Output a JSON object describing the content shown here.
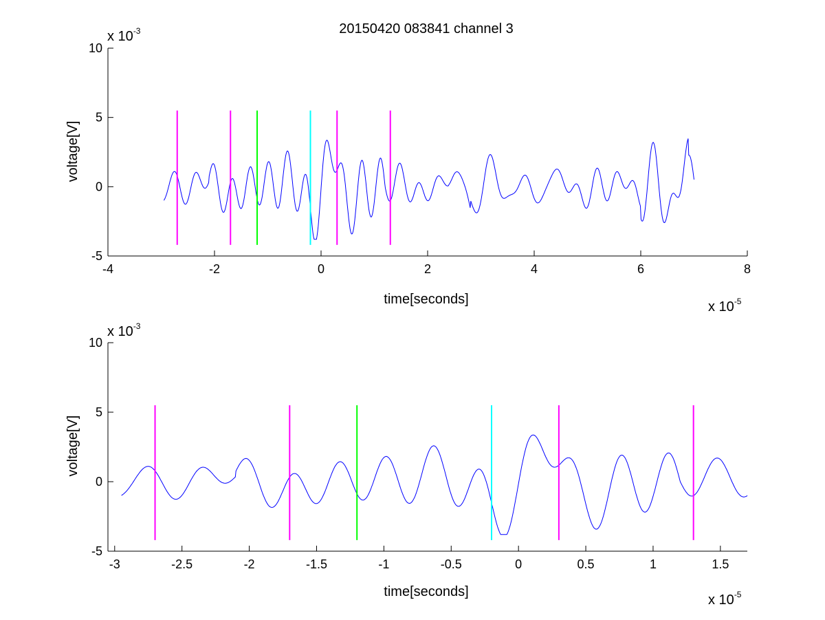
{
  "figure": {
    "title": "20150420 083841 channel 3",
    "trace_color": "#0000ff",
    "marker_colors": {
      "magenta": "#ff00ff",
      "green": "#00ff00",
      "cyan": "#00ffff"
    }
  },
  "chart_data": [
    {
      "type": "line",
      "title": "20150420 083841 channel 3",
      "xlabel": "time[seconds]",
      "ylabel": "voltage[V]",
      "xlim": [
        -4e-05,
        8e-05
      ],
      "ylim": [
        -0.005,
        0.01
      ],
      "x_ticks": [
        -4e-05,
        -2e-05,
        0,
        2e-05,
        4e-05,
        6e-05,
        8e-05
      ],
      "x_tick_labels": [
        "-4",
        "-2",
        "0",
        "2",
        "4",
        "6",
        "8"
      ],
      "y_ticks": [
        -0.005,
        0,
        0.005,
        0.01
      ],
      "y_tick_labels": [
        "-5",
        "0",
        "5",
        "10"
      ],
      "x_multiplier": {
        "base": "x 10",
        "exponent": "-5"
      },
      "y_multiplier": {
        "base": "x 10",
        "exponent": "-3"
      },
      "grid": false,
      "series": [
        {
          "x_range": [
            -2.95e-05,
            7e-05
          ],
          "seed": 7,
          "amplitude_hint": [
            -0.0038,
            0.0042
          ],
          "color": "#0000ff"
        }
      ],
      "markers": [
        {
          "x": -2.7e-05,
          "color": "magenta"
        },
        {
          "x": -1.7e-05,
          "color": "magenta"
        },
        {
          "x": -1.2e-05,
          "color": "green"
        },
        {
          "x": -2e-06,
          "color": "cyan"
        },
        {
          "x": 3e-06,
          "color": "magenta"
        },
        {
          "x": 1.3e-05,
          "color": "magenta"
        }
      ],
      "marker_span": [
        -0.0042,
        0.0055
      ]
    },
    {
      "type": "line",
      "xlabel": "time[seconds]",
      "ylabel": "voltage[V]",
      "xlim": [
        -3.05e-05,
        1.7e-05
      ],
      "ylim": [
        -0.005,
        0.01
      ],
      "x_ticks": [
        -3e-05,
        -2.5e-05,
        -2e-05,
        -1.5e-05,
        -1e-05,
        -5e-06,
        0,
        5e-06,
        1e-05,
        1.5e-05
      ],
      "x_tick_labels": [
        "-3",
        "-2.5",
        "-2",
        "-1.5",
        "-1",
        "-0.5",
        "0",
        "0.5",
        "1",
        "1.5"
      ],
      "y_ticks": [
        -0.005,
        0,
        0.005,
        0.01
      ],
      "y_tick_labels": [
        "-5",
        "0",
        "5",
        "10"
      ],
      "x_multiplier": {
        "base": "x 10",
        "exponent": "-5"
      },
      "y_multiplier": {
        "base": "x 10",
        "exponent": "-3"
      },
      "grid": false,
      "series": [
        {
          "x_range": [
            -2.95e-05,
            1.7e-05
          ],
          "seed": 7,
          "amplitude_hint": [
            -0.0038,
            0.0042
          ],
          "color": "#0000ff"
        }
      ],
      "markers": [
        {
          "x": -2.7e-05,
          "color": "magenta"
        },
        {
          "x": -1.7e-05,
          "color": "magenta"
        },
        {
          "x": -1.2e-05,
          "color": "green"
        },
        {
          "x": -2e-06,
          "color": "cyan"
        },
        {
          "x": 3e-06,
          "color": "magenta"
        },
        {
          "x": 1.3e-05,
          "color": "magenta"
        }
      ],
      "marker_span": [
        -0.0042,
        0.0055
      ]
    }
  ]
}
